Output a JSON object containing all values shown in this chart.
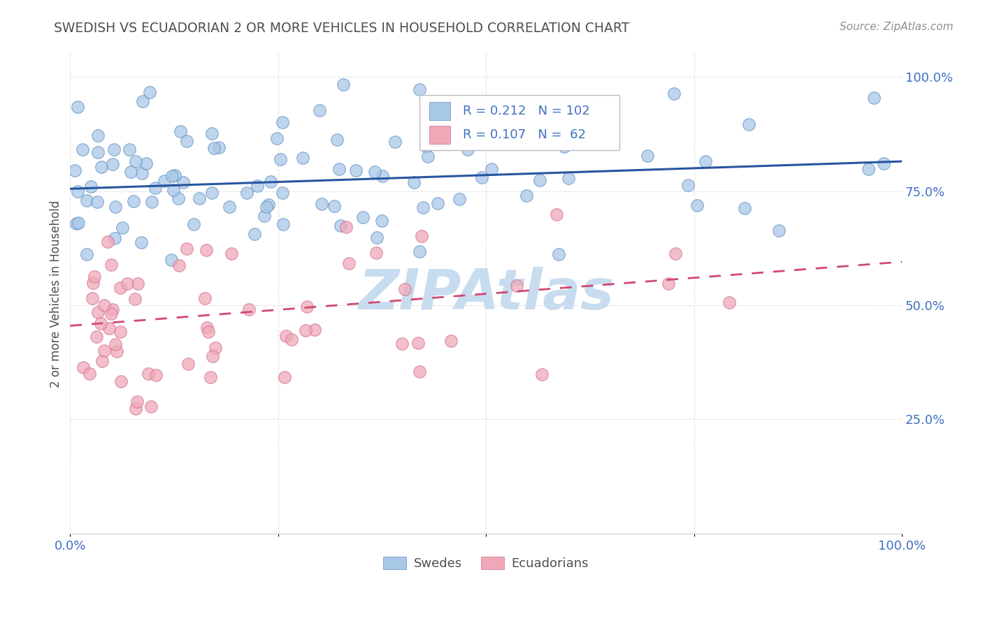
{
  "title": "SWEDISH VS ECUADORIAN 2 OR MORE VEHICLES IN HOUSEHOLD CORRELATION CHART",
  "source": "Source: ZipAtlas.com",
  "ylabel": "2 or more Vehicles in Household",
  "xlim": [
    0,
    1
  ],
  "ylim": [
    0,
    1.05
  ],
  "yticks": [
    0.25,
    0.5,
    0.75,
    1.0
  ],
  "ytick_labels": [
    "25.0%",
    "50.0%",
    "75.0%",
    "100.0%"
  ],
  "xtick_labels": [
    "0.0%",
    "100.0%"
  ],
  "swedes_R": 0.212,
  "swedes_N": 102,
  "ecuadorians_R": 0.107,
  "ecuadorians_N": 62,
  "blue_color": "#A8C8E8",
  "blue_edge_color": "#6090C0",
  "pink_color": "#F0A8B8",
  "pink_edge_color": "#D07090",
  "blue_line_color": "#2855A0",
  "pink_line_color": "#D04870",
  "watermark_color": "#C8DCF0",
  "title_color": "#505050",
  "axis_color": "#4070C0",
  "grid_color": "#DDDDDD",
  "background_color": "#FFFFFF",
  "sw_line_x0": 0.0,
  "sw_line_y0": 0.755,
  "sw_line_x1": 1.0,
  "sw_line_y1": 0.815,
  "ec_line_x0": 0.0,
  "ec_line_y0": 0.455,
  "ec_line_x1": 1.0,
  "ec_line_y1": 0.595,
  "swedes_seed": 42,
  "ecuadorians_seed": 99
}
